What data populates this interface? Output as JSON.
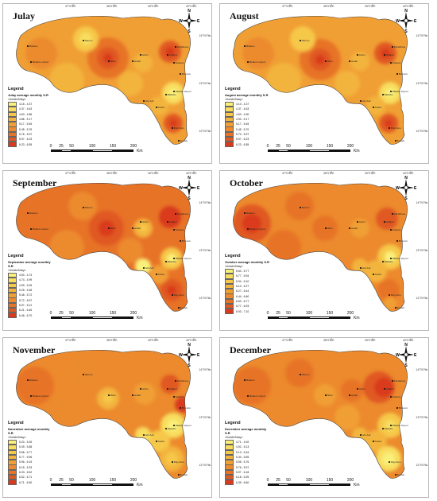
{
  "figure": {
    "panels": [
      {
        "month": "Julay",
        "legend_title": "Legend",
        "legend_subtitle": "Julay average monthly S.R",
        "legend_unit": "<Kwh/m2/day>",
        "legend_classes": [
          "4.15 - 4.37",
          "4.37 - 4.63",
          "4.63 - 4.86",
          "4.86 - 5.17",
          "5.17 - 5.45",
          "5.45 - 5.76",
          "5.76 - 5.97",
          "5.97 - 6.23",
          "6.23 - 6.55"
        ],
        "hotspot_city": "Shire",
        "cool_city": "Mekele airport"
      },
      {
        "month": "August",
        "legend_title": "Legend",
        "legend_subtitle": "August average monthly S.R",
        "legend_unit": "<Kwh/m2/day>",
        "legend_classes": [
          "4.10 - 4.37",
          "4.37 - 4.63",
          "4.63 - 4.90",
          "4.90 - 5.17",
          "5.17 - 5.45",
          "5.45 - 5.70",
          "5.70 - 5.97",
          "5.97 - 6.23",
          "6.23 - 6.55"
        ],
        "hotspot_city": "Shire",
        "cool_city": "Mekele airport"
      },
      {
        "month": "September",
        "legend_title": "Legend",
        "legend_subtitle": "September average monthly S.R",
        "legend_unit": "<Kwh/m2/day>",
        "legend_classes": [
          "4.50 - 4.74",
          "4.74 - 4.99",
          "4.99 - 5.25",
          "5.25 - 5.48",
          "5.48 - 5.72",
          "5.72 - 5.97",
          "5.97 - 6.21",
          "6.21 - 6.46",
          "6.46 - 6.70"
        ],
        "hotspot_city": "Shire",
        "cool_city": "Mekele airport"
      },
      {
        "month": "October",
        "legend_title": "Legend",
        "legend_subtitle": "October average monthly S.R",
        "legend_unit": "<Kwh/m2/day>",
        "legend_classes": [
          "5.60 - 5.77",
          "5.77 - 5.94",
          "5.94 - 6.10",
          "6.10 - 6.27",
          "6.27 - 6.44",
          "6.44 - 6.60",
          "6.60 - 6.77",
          "6.77 - 6.93",
          "6.93 - 7.10"
        ],
        "hotspot_city": "Humera airport",
        "cool_city": "Mekele airport"
      },
      {
        "month": "November",
        "legend_title": "Legend",
        "legend_subtitle": "November average monthly S.R",
        "legend_unit": "<Kwh/m2/day>",
        "legend_classes": [
          "5.20 - 5.39",
          "5.39 - 5.58",
          "5.58 - 5.77",
          "5.77 - 5.96",
          "5.96 - 6.15",
          "6.15 - 6.33",
          "6.33 - 6.52",
          "6.52 - 6.71",
          "6.71 - 6.90"
        ],
        "hotspot_city": "Zalambesa",
        "cool_city": "Mekele airport"
      },
      {
        "month": "December",
        "legend_title": "Legend",
        "legend_subtitle": "December average monthly S.R",
        "legend_unit": "<Kwh/m2/day>",
        "legend_classes": [
          "4.71 - 4.92",
          "4.92 - 5.13",
          "5.13 - 5.34",
          "5.34 - 5.55",
          "5.55 - 5.76",
          "5.76 - 5.97",
          "5.97 - 6.18",
          "6.18 - 6.39",
          "6.39 - 6.60"
        ],
        "hotspot_city": "Adigrat",
        "cool_city": "Mekele airport"
      }
    ],
    "legend_colors": [
      "#f9f07a",
      "#f8dd5e",
      "#f6c84a",
      "#f3b43d",
      "#f09f34",
      "#ec8a2d",
      "#e77327",
      "#e05822",
      "#d93a1d"
    ],
    "cities": [
      "Shiraro",
      "Humera",
      "Humera airport",
      "Shire",
      "Axum",
      "Adwa",
      "Adigrat",
      "Zalambesa",
      "Senkata",
      "Hawzen",
      "Mekele airport",
      "Mekelle",
      "Abi Adi",
      "Samre",
      "Maychew",
      "Korem"
    ],
    "scale": {
      "ticks": [
        "0",
        "25",
        "50",
        "100",
        "150",
        "200"
      ],
      "unit": "Km"
    },
    "longitudes": [
      "37°0'0\"E",
      "38°0'0\"E",
      "39°0'0\"E",
      "40°0'0\"E"
    ],
    "latitudes": [
      "14°0'0\"N",
      "13°0'0\"N",
      "12°0'0\"N"
    ],
    "compass_letters": {
      "n": "N",
      "s": "S",
      "e": "E",
      "w": "W"
    }
  }
}
